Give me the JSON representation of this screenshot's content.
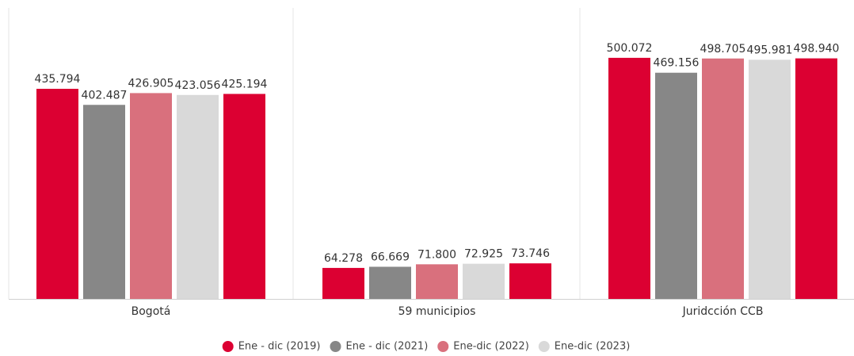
{
  "chart_data": {
    "type": "bar",
    "categories": [
      "Bogotá",
      "59 municipios",
      "Juridcción CCB"
    ],
    "series": [
      {
        "name": "Ene - dic (2019)",
        "color": "#dc0032",
        "values": [
          435794,
          64278,
          500072
        ],
        "value_labels": [
          "435.794",
          "64.278",
          "500.072"
        ]
      },
      {
        "name": "Ene - dic (2021)",
        "color": "#878787",
        "values": [
          402487,
          66669,
          469156
        ],
        "value_labels": [
          "402.487",
          "66.669",
          "469.156"
        ]
      },
      {
        "name": "Ene-dic (2022)",
        "color": "#d9707d",
        "values": [
          426905,
          71800,
          498705
        ],
        "value_labels": [
          "426.905",
          "71.800",
          "498.705"
        ]
      },
      {
        "name": "Ene-dic (2023)",
        "color": "#d9d9d9",
        "values": [
          423056,
          72925,
          495981
        ],
        "value_labels": [
          "423.056",
          "72.925",
          "495.981"
        ]
      },
      {
        "color": "#dc0032",
        "values": [
          425194,
          73746,
          498940
        ],
        "value_labels": [
          "425.194",
          "73.746",
          "498.940"
        ]
      }
    ],
    "ylim": [
      0,
      620000
    ]
  }
}
